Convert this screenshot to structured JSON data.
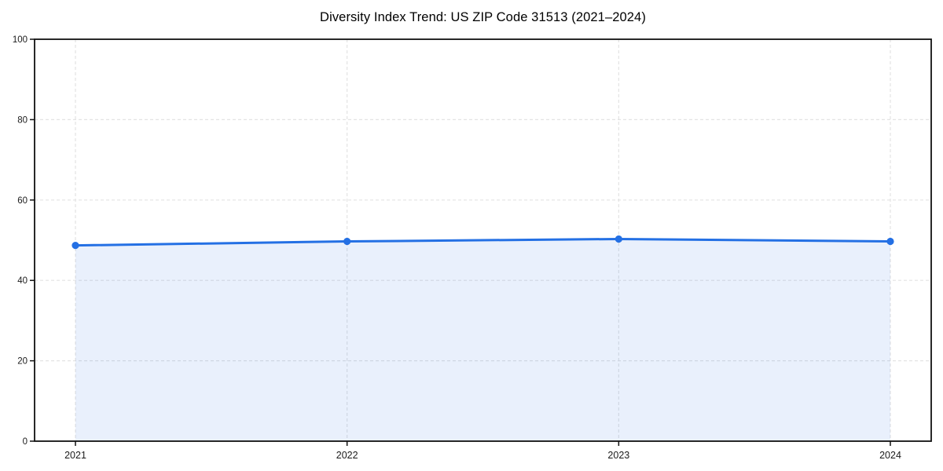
{
  "chart": {
    "title": "Diversity Index Trend: US ZIP Code 31513 (2021–2024)"
  },
  "chart_data": {
    "type": "area",
    "categories": [
      "2021",
      "2022",
      "2023",
      "2024"
    ],
    "values": [
      48.7,
      49.7,
      50.3,
      49.7
    ],
    "title": "Diversity Index Trend: US ZIP Code 31513 (2021–2024)",
    "xlabel": "",
    "ylabel": "",
    "ylim": [
      0,
      100
    ],
    "yticks": [
      0,
      20,
      40,
      60,
      80,
      100
    ],
    "grid": true,
    "grid_style": "dashed",
    "legend": "none",
    "colors": {
      "line": "#2470e4",
      "marker": "#2470e4",
      "fill": "rgba(36, 112, 228, 0.10)",
      "grid": "#e3e3e3",
      "spine": "#111111",
      "tick": "#111111",
      "tick_label": "#1a1a1a",
      "background": "#ffffff"
    }
  }
}
